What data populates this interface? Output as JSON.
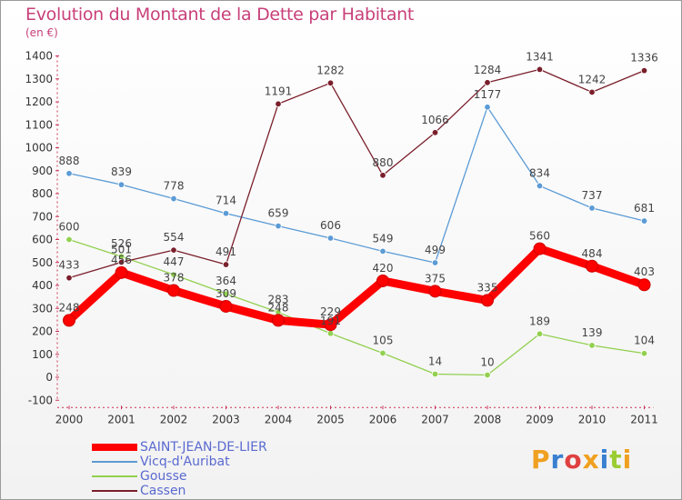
{
  "chart_data": {
    "type": "line",
    "title": "Evolution du Montant de la Dette par Habitant",
    "subtitle": "(en €)",
    "categories": [
      "2000",
      "2001",
      "2002",
      "2003",
      "2004",
      "2005",
      "2006",
      "2007",
      "2008",
      "2009",
      "2010",
      "2011"
    ],
    "ylim": [
      -100,
      1400
    ],
    "yticks": [
      -100,
      0,
      100,
      200,
      300,
      400,
      500,
      600,
      700,
      800,
      900,
      1000,
      1100,
      1200,
      1300,
      1400
    ],
    "grid": false,
    "legend_position": "bottom-left",
    "series": [
      {
        "name": "SAINT-JEAN-DE-LIER",
        "color": "#ff0000",
        "values": [
          248,
          456,
          378,
          309,
          248,
          229,
          420,
          375,
          335,
          560,
          484,
          403
        ]
      },
      {
        "name": "Vicq-d'Auribat",
        "color": "#5b9bd5",
        "values": [
          888,
          839,
          778,
          714,
          659,
          606,
          549,
          499,
          1177,
          834,
          737,
          681
        ]
      },
      {
        "name": "Gousse",
        "color": "#92d050",
        "values": [
          600,
          526,
          447,
          364,
          283,
          191,
          105,
          14,
          10,
          189,
          139,
          104
        ]
      },
      {
        "name": "Cassen",
        "color": "#7a1f2b",
        "values": [
          433,
          501,
          554,
          491,
          1191,
          1282,
          880,
          1066,
          1284,
          1341,
          1242,
          1336
        ]
      }
    ]
  },
  "logo": {
    "text": "Proxiti",
    "colors": [
      "#f0a020",
      "#3a7fd0",
      "#e04040",
      "#f0a020",
      "#3a7fd0",
      "#9acd32",
      "#f0a020"
    ]
  }
}
